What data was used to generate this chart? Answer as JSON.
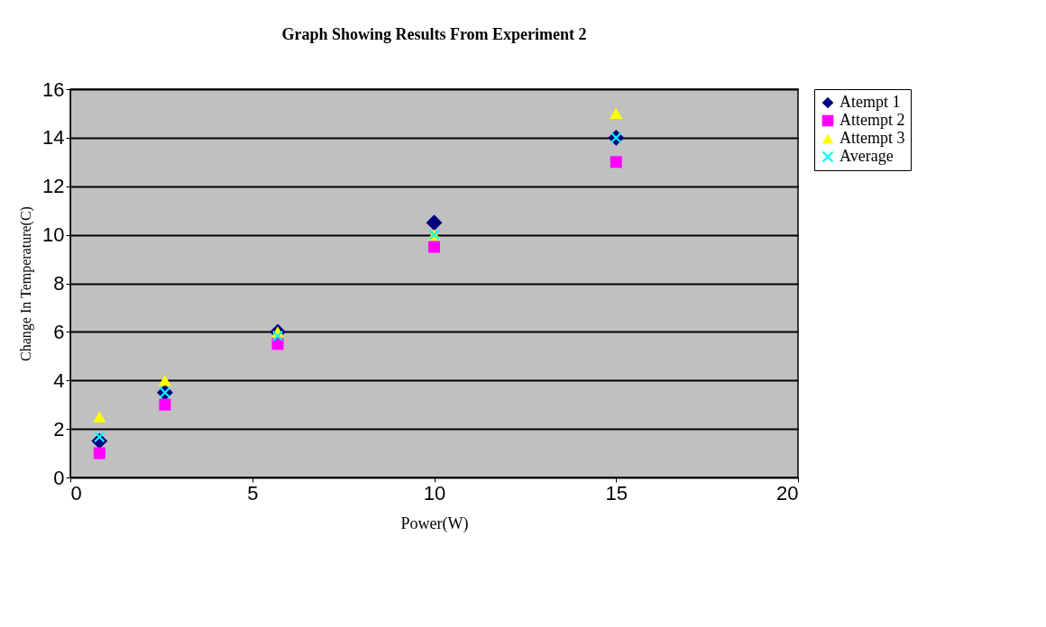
{
  "chart_data": {
    "type": "scatter",
    "title": "Graph Showing Results From Experiment 2",
    "xlabel": "Power(W)",
    "ylabel": "Change In Temperature(C)",
    "x": [
      0.8,
      2.6,
      5.7,
      10,
      15
    ],
    "series": [
      {
        "name": "Atempt 1",
        "color": "#000080",
        "marker": "diamond",
        "values": [
          1.5,
          3.5,
          6,
          10.5,
          14
        ]
      },
      {
        "name": "Attempt 2",
        "color": "#ff00ff",
        "marker": "square",
        "values": [
          1,
          3,
          5.5,
          9.5,
          13
        ]
      },
      {
        "name": "Attempt 3",
        "color": "#ffff00",
        "marker": "triangle",
        "values": [
          2.5,
          4,
          6,
          10,
          15
        ]
      },
      {
        "name": "Average",
        "color": "#00ffff",
        "marker": "cross",
        "values": [
          1.67,
          3.5,
          5.83,
          10,
          14
        ]
      }
    ],
    "xlim": [
      0,
      20
    ],
    "xticks": [
      0,
      5,
      10,
      15,
      20
    ],
    "ylim": [
      0,
      16
    ],
    "yticks": [
      0,
      2,
      4,
      6,
      8,
      10,
      12,
      14,
      16
    ],
    "grid": "y",
    "legend": "right"
  }
}
